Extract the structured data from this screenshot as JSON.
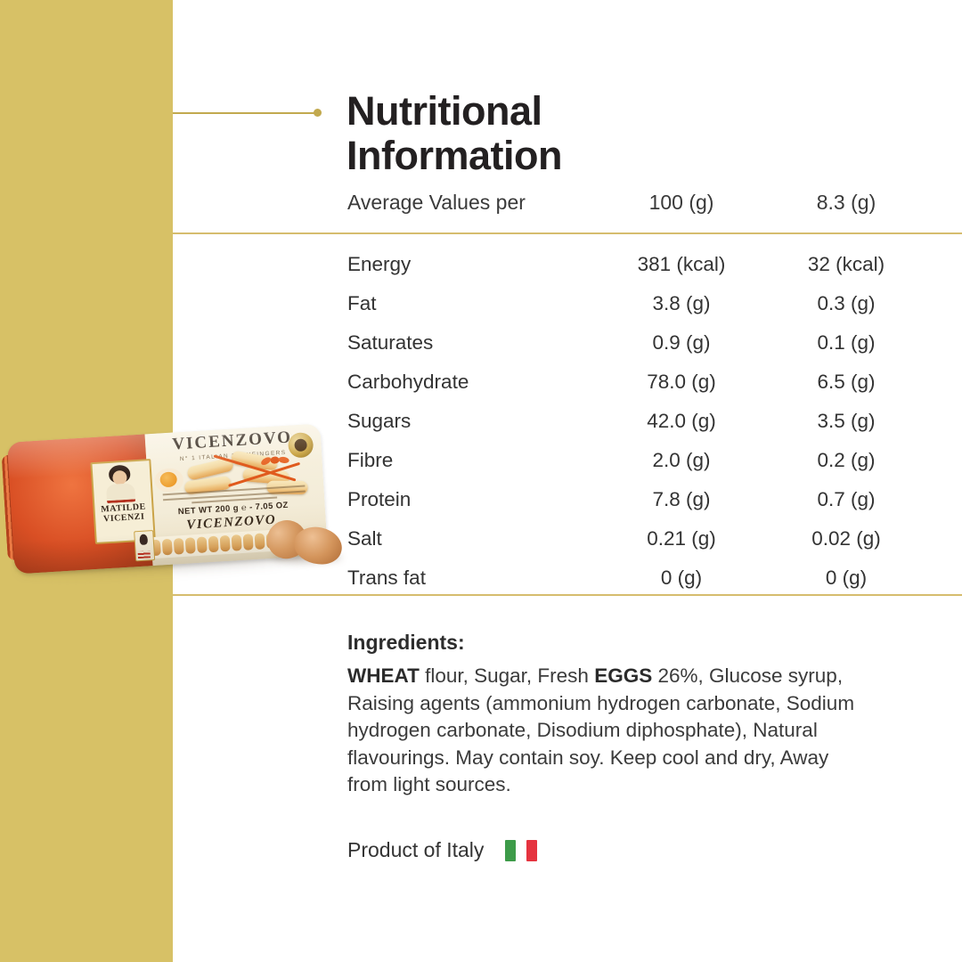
{
  "title": {
    "line1": "Nutritional",
    "line2": "Information"
  },
  "table": {
    "header": {
      "label": "Average Values per",
      "col1": "100 (g)",
      "col2": "8.3 (g)"
    },
    "rows": [
      {
        "label": "Energy",
        "per100": "381 (kcal)",
        "serving": "32 (kcal)"
      },
      {
        "label": "Fat",
        "per100": "3.8 (g)",
        "serving": "0.3 (g)"
      },
      {
        "label": "Saturates",
        "per100": "0.9 (g)",
        "serving": "0.1 (g)"
      },
      {
        "label": "Carbohydrate",
        "per100": "78.0 (g)",
        "serving": "6.5 (g)"
      },
      {
        "label": "Sugars",
        "per100": "42.0 (g)",
        "serving": "3.5 (g)"
      },
      {
        "label": "Fibre",
        "per100": "2.0 (g)",
        "serving": "0.2 (g)"
      },
      {
        "label": "Protein",
        "per100": "7.8 (g)",
        "serving": "0.7 (g)"
      },
      {
        "label": "Salt",
        "per100": "0.21 (g)",
        "serving": "0.02 (g)"
      },
      {
        "label": "Trans fat",
        "per100": "0 (g)",
        "serving": "0 (g)"
      }
    ]
  },
  "ingredients": {
    "heading": "Ingredients:",
    "seg_wheat": "WHEAT",
    "seg_mid": " flour, Sugar, Fresh ",
    "seg_eggs": "EGGS",
    "seg_rest": " 26%, Glucose syrup,\nRaising agents (ammonium hydrogen carbonate, Sodium\nhydrogen carbonate, Disodium diphosphate), Natural\nflavourings. May contain soy. Keep cool and dry, Away\nfrom light sources."
  },
  "origin": {
    "label": "Product of Italy"
  },
  "package": {
    "brand": "MATILDE VICENZI",
    "product_name": "VICENZOVO",
    "tagline": "N° 1 ITALIAN LADYFINGERS",
    "net_weight": "NET WT 200 g ℮ - 7.05 OZ",
    "window_script": "VICENZOVO"
  },
  "colors": {
    "gold_band": "#d7c166",
    "gold_divider": "#d6bd6e",
    "accent_line": "#c2a94e",
    "title_text": "#232021",
    "body_text": "#333333",
    "flag_green": "#3d9b49",
    "flag_red": "#e5333f",
    "package_orange": "#d94f24",
    "package_cream": "#f3ecd8"
  }
}
